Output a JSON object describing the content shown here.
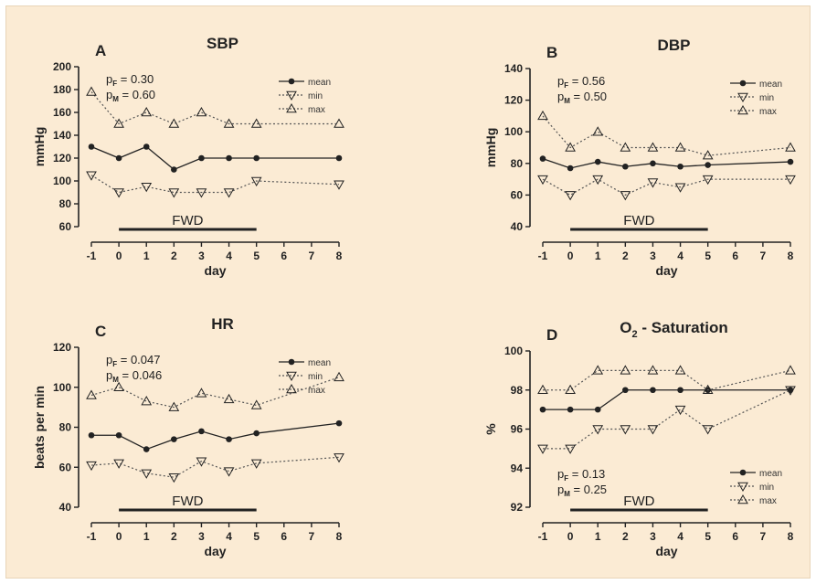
{
  "chart_data": [
    {
      "panel": "A",
      "type": "line",
      "title": "SBP",
      "title_sub": "",
      "xlabel": "day",
      "ylabel": "mmHg",
      "x": [
        -1,
        0,
        1,
        2,
        3,
        4,
        5,
        8
      ],
      "xticks": [
        -1,
        0,
        1,
        2,
        3,
        4,
        5,
        6,
        7,
        8
      ],
      "yticks": [
        60,
        80,
        100,
        120,
        140,
        160,
        180,
        200
      ],
      "ylim": [
        60,
        200
      ],
      "series": [
        {
          "name": "mean",
          "marker": "dot",
          "values": [
            130,
            120,
            130,
            110,
            120,
            120,
            120,
            120
          ]
        },
        {
          "name": "min",
          "marker": "tri-down",
          "values": [
            105,
            90,
            95,
            90,
            90,
            90,
            100,
            97
          ]
        },
        {
          "name": "max",
          "marker": "tri-up",
          "values": [
            178,
            150,
            160,
            150,
            160,
            150,
            150,
            150
          ]
        }
      ],
      "stats": [
        {
          "label": "p",
          "sub": "F",
          "text": " = 0.30"
        },
        {
          "label": "p",
          "sub": "M",
          "text": " = 0.60"
        }
      ],
      "stats_position": "top",
      "fwd": {
        "label": "FWD",
        "from": 0,
        "to": 5
      },
      "legend_position": "top-right"
    },
    {
      "panel": "B",
      "type": "line",
      "title": "DBP",
      "title_sub": "",
      "xlabel": "day",
      "ylabel": "mmHg",
      "x": [
        -1,
        0,
        1,
        2,
        3,
        4,
        5,
        8
      ],
      "xticks": [
        -1,
        0,
        1,
        2,
        3,
        4,
        5,
        6,
        7,
        8
      ],
      "yticks": [
        40,
        60,
        80,
        100,
        120,
        140
      ],
      "ylim": [
        40,
        140
      ],
      "series": [
        {
          "name": "mean",
          "marker": "dot",
          "values": [
            83,
            77,
            81,
            78,
            80,
            78,
            79,
            81
          ]
        },
        {
          "name": "min",
          "marker": "tri-down",
          "values": [
            70,
            60,
            70,
            60,
            68,
            65,
            70,
            70
          ]
        },
        {
          "name": "max",
          "marker": "tri-up",
          "values": [
            110,
            90,
            100,
            90,
            90,
            90,
            85,
            90
          ]
        }
      ],
      "stats": [
        {
          "label": "p",
          "sub": "F",
          "text": " = 0.56"
        },
        {
          "label": "p",
          "sub": "M",
          "text": " = 0.50"
        }
      ],
      "stats_position": "top",
      "fwd": {
        "label": "FWD",
        "from": 0,
        "to": 5
      },
      "legend_position": "top-right"
    },
    {
      "panel": "C",
      "type": "line",
      "title": "HR",
      "title_sub": "",
      "xlabel": "day",
      "ylabel": "beats per min",
      "x": [
        -1,
        0,
        1,
        2,
        3,
        4,
        5,
        8
      ],
      "xticks": [
        -1,
        0,
        1,
        2,
        3,
        4,
        5,
        6,
        7,
        8
      ],
      "yticks": [
        40,
        60,
        80,
        100,
        120
      ],
      "ylim": [
        40,
        120
      ],
      "series": [
        {
          "name": "mean",
          "marker": "dot",
          "values": [
            76,
            76,
            69,
            74,
            78,
            74,
            77,
            82
          ]
        },
        {
          "name": "min",
          "marker": "tri-down",
          "values": [
            61,
            62,
            57,
            55,
            63,
            58,
            62,
            65
          ]
        },
        {
          "name": "max",
          "marker": "tri-up",
          "values": [
            96,
            100,
            93,
            90,
            97,
            94,
            91,
            105
          ]
        }
      ],
      "stats": [
        {
          "label": "p",
          "sub": "F",
          "text": " = 0.047"
        },
        {
          "label": "p",
          "sub": "M",
          "text": " = 0.046"
        }
      ],
      "stats_position": "top",
      "fwd": {
        "label": "FWD",
        "from": 0,
        "to": 5
      },
      "legend_position": "top-right"
    },
    {
      "panel": "D",
      "type": "line",
      "title": "O",
      "title_sub": "2",
      "title_rest": " - Saturation",
      "xlabel": "day",
      "ylabel": "%",
      "x": [
        -1,
        0,
        1,
        2,
        3,
        4,
        5,
        8
      ],
      "xticks": [
        -1,
        0,
        1,
        2,
        3,
        4,
        5,
        6,
        7,
        8
      ],
      "yticks": [
        92,
        94,
        96,
        98,
        100
      ],
      "ylim": [
        92,
        100
      ],
      "series": [
        {
          "name": "mean",
          "marker": "dot",
          "values": [
            97,
            97,
            97,
            98,
            98,
            98,
            98,
            98
          ]
        },
        {
          "name": "min",
          "marker": "tri-down",
          "values": [
            95,
            95,
            96,
            96,
            96,
            97,
            96,
            98
          ]
        },
        {
          "name": "max",
          "marker": "tri-up",
          "values": [
            98,
            98,
            99,
            99,
            99,
            99,
            98,
            99
          ]
        }
      ],
      "stats": [
        {
          "label": "p",
          "sub": "F",
          "text": " = 0.13"
        },
        {
          "label": "p",
          "sub": "M",
          "text": " = 0.25"
        }
      ],
      "stats_position": "bottom",
      "fwd": {
        "label": "FWD",
        "from": 0,
        "to": 5
      },
      "legend_position": "bottom-right"
    }
  ],
  "colors": {
    "background": "#fbebd4",
    "ink": "#222222",
    "dotted": "#555555"
  }
}
